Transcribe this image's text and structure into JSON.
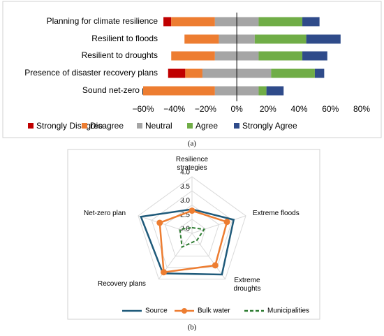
{
  "chart_data": [
    {
      "type": "bar",
      "categories": [
        "Planning for climate resilience",
        "Resilient to floods",
        "Resilient to droughts",
        "Presence of disaster recovery plans",
        "Sound net-zero plan"
      ],
      "series": [
        {
          "name": "Strongly Disagree",
          "color": "#c00000",
          "values": [
            5,
            0,
            0,
            11,
            0
          ]
        },
        {
          "name": "Disagree",
          "color": "#ed7d31",
          "values": [
            28,
            22,
            28,
            11,
            46
          ]
        },
        {
          "name": "Neutral",
          "color": "#a5a5a5",
          "values": [
            28,
            23,
            28,
            44,
            28
          ]
        },
        {
          "name": "Agree",
          "color": "#70ad47",
          "values": [
            28,
            33,
            28,
            28,
            5
          ]
        },
        {
          "name": "Strongly Agree",
          "color": "#2f4b8a",
          "values": [
            11,
            22,
            16,
            6,
            11
          ]
        }
      ],
      "xlim": [
        -60,
        80
      ],
      "xticks": [
        {
          "value": -60,
          "label": "−60%"
        },
        {
          "value": -40,
          "label": "−40%"
        },
        {
          "value": -20,
          "label": "−20%"
        },
        {
          "value": 0,
          "label": "0%"
        },
        {
          "value": 20,
          "label": "20%"
        },
        {
          "value": 40,
          "label": "40%"
        },
        {
          "value": 60,
          "label": "60%"
        },
        {
          "value": 80,
          "label": "80%"
        }
      ],
      "caption": "(a)"
    },
    {
      "type": "radar",
      "categories": [
        "Resilience strategies",
        "Extreme floods",
        "Extreme droughts",
        "Recovery plans",
        "Net-zero plan"
      ],
      "series": [
        {
          "name": "Source",
          "color": "#1f5a7a",
          "values": [
            2.85,
            3.55,
            3.8,
            3.75,
            3.9
          ]
        },
        {
          "name": "Bulk water",
          "color": "#ed7d31",
          "values": [
            2.8,
            3.3,
            3.4,
            3.7,
            3.2
          ]
        },
        {
          "name": "Municipalities",
          "color": "#2e7d32",
          "values": [
            2.2,
            2.45,
            2.3,
            2.6,
            2.45
          ]
        }
      ],
      "rlim": [
        2.0,
        4.0
      ],
      "rticks": [
        {
          "value": 2.0,
          "label": "2.0"
        },
        {
          "value": 2.5,
          "label": "2.5"
        },
        {
          "value": 3.0,
          "label": "3.0"
        },
        {
          "value": 3.5,
          "label": "3.5"
        },
        {
          "value": 4.0,
          "label": "4.0"
        }
      ],
      "caption": "(b)"
    }
  ]
}
